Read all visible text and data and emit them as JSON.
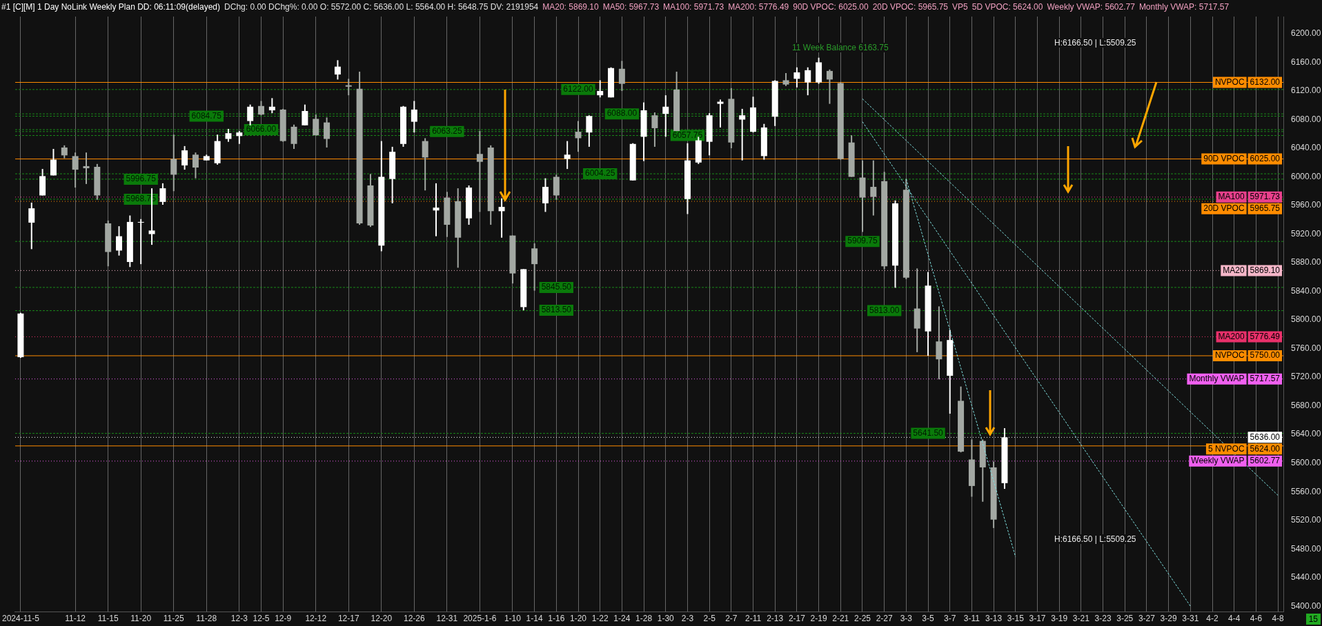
{
  "chart_data": {
    "type": "candlestick",
    "title": "#1 [C][M]  1 Day  NoLink Weekly Plan DD: 06:11:09(delayed)",
    "subtitle": "DChg: 0.00 DChg%: 0.00 O: 5572.00 C: 5636.00 L: 5564.00 H: 5648.75 DV: 2191954",
    "categories": [
      "2024-11-5",
      null,
      null,
      null,
      null,
      "11-12",
      null,
      null,
      "11-15",
      null,
      null,
      "11-20",
      null,
      null,
      "11-25",
      null,
      null,
      "11-28",
      null,
      null,
      "12-3",
      null,
      "12-5",
      null,
      "12-9",
      null,
      null,
      "12-12",
      null,
      null,
      "12-17",
      null,
      null,
      "12-20",
      null,
      null,
      "12-26",
      null,
      null,
      "12-31",
      null,
      null,
      "2025-1-6",
      null,
      null,
      "1-10",
      null,
      "1-14",
      null,
      "1-16",
      null,
      "1-20",
      null,
      "1-22",
      null,
      "1-24",
      null,
      "1-28",
      null,
      "1-30",
      null,
      "2-3",
      null,
      "2-5",
      null,
      "2-7",
      null,
      "2-11",
      null,
      "2-13",
      null,
      "2-17",
      null,
      "2-19",
      null,
      "2-21",
      null,
      "2-25",
      null,
      "2-27",
      null,
      "3-3",
      null,
      "3-5",
      null,
      "3-7",
      null,
      "3-11",
      null,
      "3-13",
      null,
      "3-15",
      null,
      "3-17",
      null,
      "3-19",
      null,
      "3-21",
      null,
      "3-23",
      null,
      "3-25",
      null,
      "3-27",
      null,
      "3-29",
      null,
      "3-31",
      null,
      "4-2",
      null,
      "4-4",
      null,
      "4-6",
      null,
      "4-8"
    ],
    "ohlc": [
      [
        5748,
        5810,
        5747,
        5809
      ],
      [
        5936,
        5964,
        5899,
        5956
      ],
      [
        5974,
        6011,
        5974,
        6001
      ],
      [
        6002,
        6039,
        6002,
        6024
      ],
      [
        6041,
        6044,
        6026,
        6030
      ],
      [
        6029,
        6034,
        5985,
        6010
      ],
      [
        6015,
        6034,
        5990,
        6012
      ],
      [
        6014,
        6018,
        5968,
        5974
      ],
      [
        5935,
        5939,
        5875,
        5895
      ],
      [
        5897,
        5931,
        5890,
        5917
      ],
      [
        5881,
        5946,
        5874,
        5937
      ],
      [
        5936,
        5941,
        5878,
        5937
      ],
      [
        5920,
        5984,
        5905,
        5925
      ],
      [
        5965,
        5991,
        5961,
        5984
      ],
      [
        6025,
        6059,
        5980,
        6003
      ],
      [
        6016,
        6043,
        6010,
        6037
      ],
      [
        6031,
        6034,
        5998,
        6013
      ],
      [
        6023,
        6031,
        6023,
        6029
      ],
      [
        6019,
        6059,
        6017,
        6050
      ],
      [
        6053,
        6067,
        6049,
        6061
      ],
      [
        6057,
        6064,
        6046,
        6062
      ],
      [
        6078,
        6101,
        6072,
        6098
      ],
      [
        6099,
        6106,
        6086,
        6087
      ],
      [
        6093,
        6110,
        6089,
        6098
      ],
      [
        6094,
        6095,
        6049,
        6050
      ],
      [
        6070,
        6073,
        6039,
        6046
      ],
      [
        6072,
        6101,
        6072,
        6092
      ],
      [
        6081,
        6087,
        6058,
        6058
      ],
      [
        6076,
        6083,
        6041,
        6053
      ],
      [
        6143,
        6163,
        6136,
        6154
      ],
      [
        6128,
        6137,
        6114,
        6126
      ],
      [
        6123,
        6147,
        5933,
        5935
      ],
      [
        5988,
        6004,
        5930,
        5932
      ],
      [
        5904,
        6050,
        5896,
        6000
      ],
      [
        5997,
        6042,
        5963,
        6035
      ],
      [
        6046,
        6099,
        6042,
        6098
      ],
      [
        6077,
        6106,
        6062,
        6094
      ],
      [
        6050,
        6054,
        5981,
        6027
      ],
      [
        5953,
        5991,
        5917,
        5957
      ],
      [
        5971,
        5979,
        5916,
        5933
      ],
      [
        5966,
        5984,
        5873,
        5915
      ],
      [
        5942,
        5988,
        5933,
        5985
      ],
      [
        6032,
        6064,
        5951,
        6021
      ],
      [
        6041,
        6044,
        5933,
        5952
      ],
      [
        5952,
        5970,
        5915,
        5958
      ],
      [
        5918,
        5918,
        5851,
        5865
      ],
      [
        5818,
        5871,
        5813.5,
        5871
      ],
      [
        5900,
        5907,
        5841,
        5878
      ],
      [
        5963,
        5998,
        5951,
        5986
      ],
      [
        6000,
        6003,
        5968,
        5974
      ],
      [
        6025,
        6050,
        6011,
        6031
      ],
      [
        6063,
        6078,
        6035,
        6054
      ],
      [
        6062,
        6086,
        6042,
        6085
      ],
      [
        6114,
        6135,
        6111,
        6120
      ],
      [
        6111,
        6153,
        6111,
        6152
      ],
      [
        6151,
        6162,
        6120,
        6130
      ],
      [
        5995,
        6047,
        5995,
        6046
      ],
      [
        6056,
        6104,
        6022,
        6093
      ],
      [
        6086,
        6090,
        6042,
        6068
      ],
      [
        6088,
        6114,
        6056,
        6098
      ],
      [
        6122,
        6147,
        6064,
        6064
      ],
      [
        5969,
        6047,
        5948,
        6023
      ],
      [
        6020,
        6056,
        6018,
        6051
      ],
      [
        6049,
        6089,
        6030,
        6086
      ],
      [
        6102,
        6108,
        6069,
        6105
      ],
      [
        6109,
        6124,
        6040,
        6048
      ],
      [
        6080,
        6095,
        6023,
        6086
      ],
      [
        6063,
        6112,
        6062,
        6097
      ],
      [
        6029,
        6074,
        6024,
        6069
      ],
      [
        6084,
        6135,
        6071,
        6134
      ],
      [
        6135,
        6145,
        6127,
        6129
      ],
      [
        6137,
        6153,
        6125,
        6146
      ],
      [
        6132,
        6153,
        6114,
        6149
      ],
      [
        6132,
        6166.5,
        6130,
        6160
      ],
      [
        6148,
        6150,
        6102,
        6136
      ],
      [
        6131,
        6132,
        6024,
        6025
      ],
      [
        6048,
        6058,
        6000,
        6000
      ],
      [
        5999,
        6023,
        5923,
        5971
      ],
      [
        5986,
        6023,
        5946,
        5972
      ],
      [
        5994,
        6007,
        5871,
        5875
      ],
      [
        5876,
        5967,
        5845,
        5963
      ],
      [
        5982,
        5997,
        5857,
        5859
      ],
      [
        5816,
        5872,
        5755,
        5788
      ],
      [
        5784,
        5867,
        5750,
        5848
      ],
      [
        5770,
        5819,
        5717,
        5745
      ],
      [
        5722,
        5786,
        5669,
        5772
      ],
      [
        5687,
        5707,
        5615,
        5616
      ],
      [
        5605,
        5633,
        5553,
        5568
      ],
      [
        5631,
        5633,
        5546,
        5594
      ],
      [
        5594,
        5602,
        5509.25,
        5521
      ],
      [
        5572,
        5648.75,
        5564,
        5636
      ],
      null,
      null,
      null,
      null,
      null,
      null,
      null,
      null,
      null,
      null,
      null,
      null,
      null,
      null,
      null,
      null,
      null,
      null,
      null,
      null,
      null,
      null,
      null,
      null,
      null
    ],
    "colors": [
      "#ffffff",
      "#ffffff",
      "#ffffff",
      "#ffffff",
      "#a3a8a3",
      "#a3a8a3",
      "#a3a8a3",
      "#a3a8a3",
      "#a3a8a3",
      "#ffffff",
      "#ffffff",
      "#ffffff",
      "#ffffff",
      "#ffffff",
      "#a3a8a3",
      "#ffffff",
      "#a3a8a3",
      "#ffffff",
      "#ffffff",
      "#ffffff",
      "#ffffff",
      "#ffffff",
      "#a3a8a3",
      "#ffffff",
      "#a3a8a3",
      "#a3a8a3",
      "#ffffff",
      "#a3a8a3",
      "#a3a8a3",
      "#ffffff",
      "#a3a8a3",
      "#a3a8a3",
      "#a3a8a3",
      "#ffffff",
      "#ffffff",
      "#ffffff",
      "#ffffff",
      "#a3a8a3",
      "#ffffff",
      "#a3a8a3",
      "#a3a8a3",
      "#ffffff",
      "#a3a8a3",
      "#a3a8a3",
      "#ffffff",
      "#a3a8a3",
      "#ffffff",
      "#a3a8a3",
      "#ffffff",
      "#a3a8a3",
      "#ffffff",
      "#a3a8a3",
      "#ffffff",
      "#ffffff",
      "#ffffff",
      "#a3a8a3",
      "#ffffff",
      "#ffffff",
      "#a3a8a3",
      "#ffffff",
      "#a3a8a3",
      "#ffffff",
      "#ffffff",
      "#ffffff",
      "#ffffff",
      "#a3a8a3",
      "#ffffff",
      "#ffffff",
      "#ffffff",
      "#ffffff",
      "#a3a8a3",
      "#ffffff",
      "#ffffff",
      "#ffffff",
      "#a3a8a3",
      "#a3a8a3",
      "#a3a8a3",
      "#a3a8a3",
      "#a3a8a3",
      "#a3a8a3",
      "#ffffff",
      "#a3a8a3",
      "#a3a8a3",
      "#ffffff",
      "#a3a8a3",
      "#ffffff",
      "#a3a8a3",
      "#a3a8a3",
      "#a3a8a3",
      "#a3a8a3",
      "#ffffff",
      null,
      null,
      null,
      null,
      null,
      null,
      null,
      null,
      null,
      null,
      null,
      null,
      null,
      null,
      null,
      null,
      null,
      null,
      null,
      null,
      null,
      null,
      null,
      null,
      null
    ],
    "series": [
      {
        "type": "line",
        "x": [
          "2-25",
          "4-8"
        ],
        "values": [
          6109,
          5555
        ],
        "color": "#7fe0e0",
        "line_style": "dashed"
      },
      {
        "type": "line",
        "x": [
          "2-25",
          "3-31"
        ],
        "values": [
          6077,
          5400
        ],
        "color": "#7fe0e0",
        "line_style": "dashed"
      },
      {
        "type": "line",
        "x": [
          "3-3",
          "3-15"
        ],
        "values": [
          5997,
          5469
        ],
        "color": "#7fe0e0",
        "line_style": "dashed"
      }
    ],
    "ylim": [
      5392,
      6224
    ],
    "yticks": [
      {
        "value": 5400,
        "label": "5400.00"
      },
      {
        "value": 5440,
        "label": "5440.00"
      },
      {
        "value": 5480,
        "label": "5480.00"
      },
      {
        "value": 5520,
        "label": "5520.00"
      },
      {
        "value": 5560,
        "label": "5560.00"
      },
      {
        "value": 5600,
        "label": "5600.00"
      },
      {
        "value": 5640,
        "label": "5640.00"
      },
      {
        "value": 5680,
        "label": "5680.00"
      },
      {
        "value": 5720,
        "label": "5720.00"
      },
      {
        "value": 5760,
        "label": "5760.00"
      },
      {
        "value": 5800,
        "label": "5800.00"
      },
      {
        "value": 5840,
        "label": "5840.00"
      },
      {
        "value": 5880,
        "label": "5880.00"
      },
      {
        "value": 5920,
        "label": "5920.00"
      },
      {
        "value": 5960,
        "label": "5960.00"
      },
      {
        "value": 6000,
        "label": "6000.00"
      },
      {
        "value": 6040,
        "label": "6040.00"
      },
      {
        "value": 6080,
        "label": "6080.00"
      },
      {
        "value": 6120,
        "label": "6120.00"
      },
      {
        "value": 6160,
        "label": "6160.00"
      },
      {
        "value": 6200,
        "label": "6200.00"
      }
    ],
    "grid": "x",
    "ref_lines": [
      {
        "axis": "y",
        "value": 6132,
        "label": "NVPOC 6132.00",
        "color": "#ff8c00",
        "line_style": "solid"
      },
      {
        "axis": "y",
        "value": 6025,
        "label": "90D VPOC 6025.00",
        "color": "#ff8c00",
        "line_style": "solid"
      },
      {
        "axis": "y",
        "value": 5971.73,
        "label": "MA100 5971.73",
        "color": "#e8408c",
        "line_style": "dotted"
      },
      {
        "axis": "y",
        "value": 5965.75,
        "label": "20D VPOC 5965.75",
        "color": "#ff8c00",
        "line_style": "dotted"
      },
      {
        "axis": "y",
        "value": 5869.1,
        "label": "MA20 5869.10",
        "color": "#f5b6c8",
        "line_style": "dotted"
      },
      {
        "axis": "y",
        "value": 5776.49,
        "label": "MA200 5776.49",
        "color": "#e8306a",
        "line_style": "dotted"
      },
      {
        "axis": "y",
        "value": 5750,
        "label": "NVPOC 5750.00",
        "color": "#ff8c00",
        "line_style": "solid"
      },
      {
        "axis": "y",
        "value": 5717.57,
        "label": "Monthly VWAP 5717.57",
        "color": "#f060f0",
        "line_style": "dotted"
      },
      {
        "axis": "y",
        "value": 5636,
        "label": "5636.00",
        "color": "#ffffff",
        "line_style": "dotted"
      },
      {
        "axis": "y",
        "value": 5624,
        "label": "5 NVPOC 5624.00",
        "color": "#ff8c00",
        "line_style": "solid"
      },
      {
        "axis": "y",
        "value": 5602.77,
        "label": "Weekly VWAP 5602.77",
        "color": "#f060f0",
        "line_style": "dotted"
      },
      {
        "axis": "y",
        "value": 6066,
        "color": "#1a8a1a",
        "line_style": "dashed"
      },
      {
        "axis": "y",
        "value": 5968.75,
        "color": "#1a8a1a",
        "line_style": "dashed"
      },
      {
        "axis": "y",
        "value": 6084.75,
        "color": "#1a8a1a",
        "line_style": "dashed"
      },
      {
        "axis": "y",
        "value": 6063.25,
        "color": "#1a8a1a",
        "line_style": "dashed"
      },
      {
        "axis": "y",
        "value": 5996.75,
        "color": "#1a8a1a",
        "line_style": "dashed"
      },
      {
        "axis": "y",
        "value": 5845.5,
        "color": "#1a8a1a",
        "line_style": "dashed"
      },
      {
        "axis": "y",
        "value": 6122,
        "color": "#1a8a1a",
        "line_style": "dashed"
      },
      {
        "axis": "y",
        "value": 6088,
        "color": "#1a8a1a",
        "line_style": "dashed"
      },
      {
        "axis": "y",
        "value": 6004.25,
        "color": "#1a8a1a",
        "line_style": "dashed"
      },
      {
        "axis": "y",
        "value": 6057.75,
        "color": "#1a8a1a",
        "line_style": "dashed"
      },
      {
        "axis": "y",
        "value": 5909.75,
        "color": "#1a8a1a",
        "line_style": "dashed"
      },
      {
        "axis": "y",
        "value": 5813,
        "color": "#1a8a1a",
        "line_style": "dashed"
      },
      {
        "axis": "y",
        "value": 5641.5,
        "color": "#1a8a1a",
        "line_style": "dashed"
      }
    ],
    "annotations": [
      "MA20: 5869.10",
      "MA50: 5967.73",
      "MA100: 5971.73",
      "MA200: 5776.49",
      "90D VPOC: 6025.00",
      "20D VPOC: 5965.75",
      "VP5",
      "5D VPOC: 5624.00",
      "Weekly VWAP: 5602.77",
      "Monthly VWAP: 5717.57",
      {
        "text": "6066.00",
        "x": "12-5",
        "y": 6066
      },
      {
        "text": "5968.75",
        "x": "11-20",
        "y": 5968.75
      },
      {
        "text": "6084.75",
        "x": "11-28",
        "y": 6084.75
      },
      {
        "text": "6063.25",
        "x": "12-31",
        "y": 6063.25
      },
      {
        "text": "5996.75",
        "x": "11-20",
        "y": 5996.75
      },
      {
        "text": "5845.50",
        "x": "1-16",
        "y": 5845.5
      },
      {
        "text": "5813.50",
        "x": "1-16",
        "y": 5813.5
      },
      {
        "text": "6122.00",
        "x": "1-20",
        "y": 6122
      },
      {
        "text": "6088.00",
        "x": "1-24",
        "y": 6088
      },
      {
        "text": "6004.25",
        "x": "1-22",
        "y": 6004.25
      },
      {
        "text": "6057.75",
        "x": "2-3",
        "y": 6057.75
      },
      {
        "text": "5909.75",
        "x": "2-25",
        "y": 5909.75
      },
      {
        "text": "5813.00",
        "x": "2-27",
        "y": 5813
      },
      {
        "text": "5641.50",
        "x": "3-5",
        "y": 5641.5
      },
      "11 Week Balance 6163.75",
      "H:6166.50 | L:5509.25",
      "H:6166.50 | L:5509.25",
      "15"
    ]
  }
}
